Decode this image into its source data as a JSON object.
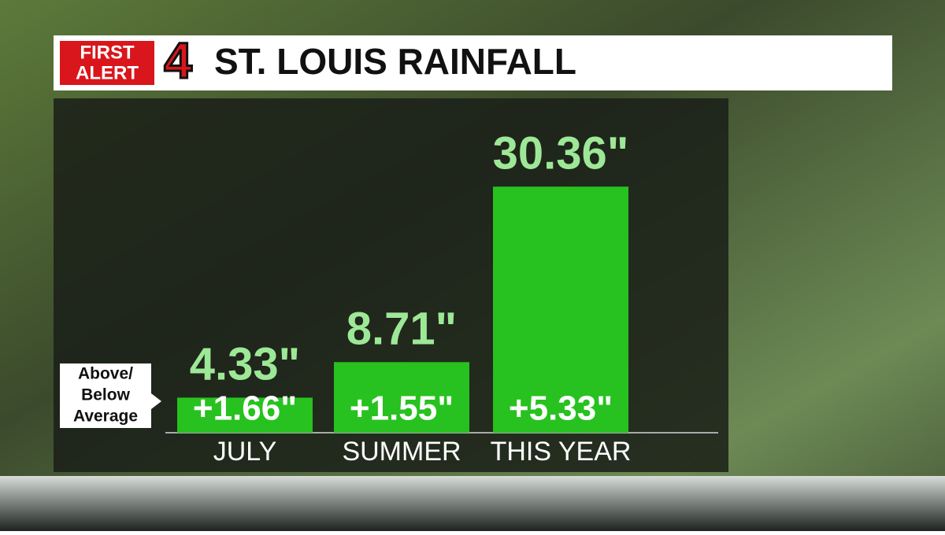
{
  "logo": {
    "line1": "FIRST",
    "line2": "ALERT",
    "number": "4"
  },
  "chart_data": {
    "type": "bar",
    "title": "ST. LOUIS RAINFALL",
    "categories": [
      "JULY",
      "SUMMER",
      "THIS YEAR"
    ],
    "values": [
      4.33,
      8.71,
      30.36
    ],
    "value_labels": [
      "4.33\"",
      "8.71\"",
      "30.36\""
    ],
    "color": "#27c21f",
    "ylim": [
      0,
      33
    ],
    "anomaly": {
      "name_lines": [
        "Above/",
        "Below",
        "Average"
      ],
      "values": [
        1.66,
        1.55,
        5.33
      ],
      "value_labels": [
        "+1.66\"",
        "+1.55\"",
        "+5.33\""
      ]
    }
  }
}
